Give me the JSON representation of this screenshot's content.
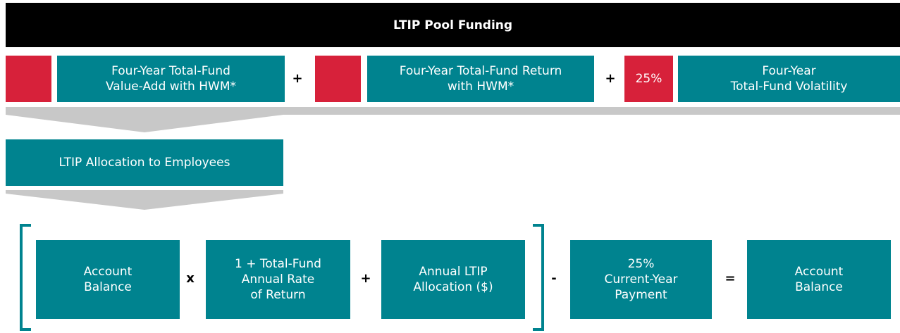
{
  "pool_funding": {
    "title": "LTIP Pool Funding",
    "terms": [
      {
        "lines": [
          "Four-Year Total-Fund",
          "Value-Add with HWM*"
        ]
      },
      {
        "lines": [
          "Four-Year Total-Fund Return",
          "with HWM*"
        ]
      },
      {
        "lines": [
          "Four-Year",
          "Total-Fund Volatility"
        ]
      }
    ],
    "operators": [
      "+",
      "+"
    ],
    "weight": "25%"
  },
  "allocation": {
    "title": "LTIP Allocation to Employees"
  },
  "account": {
    "terms": [
      {
        "lines": [
          "Account",
          "Balance"
        ]
      },
      {
        "lines": [
          "1 + Total-Fund",
          "Annual Rate",
          "of Return"
        ]
      },
      {
        "lines": [
          "Annual LTIP",
          "Allocation ($)"
        ]
      },
      {
        "lines": [
          "25%",
          "Current-Year",
          "Payment"
        ]
      },
      {
        "lines": [
          "Account",
          "Balance"
        ]
      }
    ],
    "operators": [
      "x",
      "+",
      "-",
      "="
    ]
  }
}
